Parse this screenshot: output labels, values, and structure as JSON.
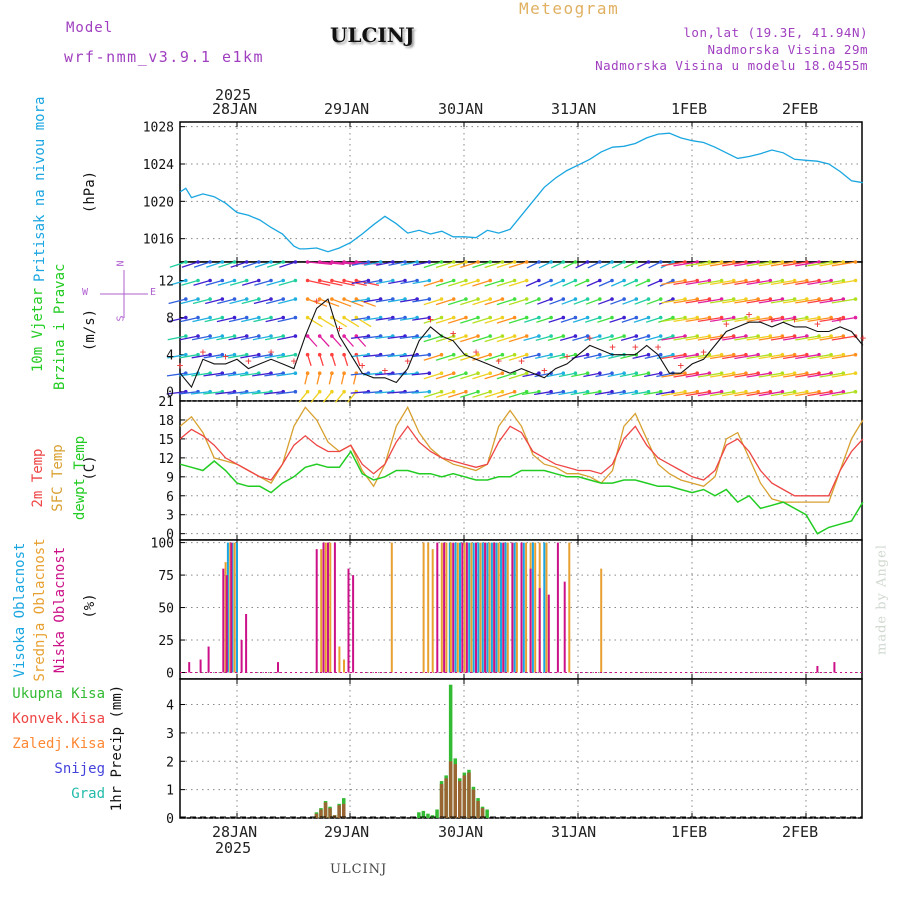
{
  "header": {
    "model_label": "Model",
    "model_name": "wrf-nmm_v3.9.1 e1km",
    "station": "ULCINJ",
    "meteogram": "Meteogram",
    "lonlat": "lon,lat (19.3E, 41.94N)",
    "elevation": "Nadmorska Visina 29m",
    "model_elevation": "Nadmorska Visina u modelu 18.0455m"
  },
  "footer": {
    "station": "ULCINJ",
    "credit": "made by Angel"
  },
  "colors": {
    "pressure": "#1aa6e0",
    "temp2m": "#ee4444",
    "sfc": "#d8a030",
    "dew": "#22cc22",
    "high_cloud": "#1aa6e0",
    "mid_cloud": "#e8a030",
    "low_cloud": "#cc1188",
    "total_precip": "#33bb33",
    "conv_precip": "#ee4444",
    "freezing": "#ff8833",
    "snow": "#4444dd",
    "hail": "#22bbaa",
    "purple_text": "#a040c0",
    "orange_text": "#e0a040"
  },
  "time_axis": {
    "year": "2025",
    "labels": [
      "28JAN",
      "29JAN",
      "30JAN",
      "31JAN",
      "1FEB",
      "2FEB"
    ]
  },
  "panels": {
    "pressure": {
      "label": "Pritisak na nivou mora",
      "unit": "(hPa)"
    },
    "wind": {
      "label1": "10m Vjetar",
      "label2": "Brzina i Pravac",
      "unit": "(m/s)",
      "compass_w": "W",
      "compass_e": "E",
      "compass_n": "N",
      "compass_s": "S"
    },
    "temp": {
      "label1": "2m Temp",
      "label2": "SFC Temp",
      "label3": "dewpt Temp",
      "unit": "(C)"
    },
    "cloud": {
      "label1": "Visoka Oblacnost",
      "label2": "Srednja Oblacnost",
      "label3": "Niska Oblacnost",
      "unit": "(%)"
    },
    "precip": {
      "label": "1hr Precip (mm)",
      "legend": [
        "Ukupna Kisa",
        "Konvek.Kisa",
        "Zaledj.Kisa",
        "Snijeg",
        "Grad"
      ]
    }
  },
  "chart_data": [
    {
      "type": "line",
      "title": "Pritisak na nivou mora",
      "ylabel": "(hPa)",
      "ylim": [
        1013.5,
        1028.5
      ],
      "yticks": [
        1016,
        1020,
        1024,
        1028
      ],
      "x_unit": "days since 28JAN 00UTC",
      "xlim": [
        -0.5,
        5.5
      ],
      "grid": true,
      "series": [
        {
          "name": "Pritisak",
          "x": [
            -0.5,
            -0.45,
            -0.4,
            -0.3,
            -0.2,
            -0.1,
            0,
            0.1,
            0.2,
            0.3,
            0.4,
            0.5,
            0.55,
            0.6,
            0.7,
            0.8,
            0.9,
            1.0,
            1.1,
            1.2,
            1.3,
            1.4,
            1.5,
            1.6,
            1.7,
            1.8,
            1.9,
            2.0,
            2.1,
            2.2,
            2.3,
            2.4,
            2.5,
            2.6,
            2.7,
            2.8,
            2.9,
            3.0,
            3.1,
            3.2,
            3.3,
            3.4,
            3.5,
            3.6,
            3.7,
            3.8,
            3.9,
            4.0,
            4.1,
            4.2,
            4.3,
            4.4,
            4.5,
            4.6,
            4.7,
            4.8,
            4.9,
            5.0,
            5.1,
            5.2,
            5.3,
            5.4,
            5.5
          ],
          "values": [
            1021,
            1021.4,
            1020.4,
            1020.8,
            1020.5,
            1019.8,
            1018.8,
            1018.5,
            1018,
            1017.2,
            1016.5,
            1015.2,
            1014.9,
            1014.9,
            1015,
            1014.6,
            1015,
            1015.6,
            1016.5,
            1017.5,
            1018.4,
            1017.6,
            1016.6,
            1016.9,
            1016.5,
            1016.8,
            1016.2,
            1016.2,
            1016.1,
            1016.9,
            1016.6,
            1017,
            1018.5,
            1020,
            1021.5,
            1022.5,
            1023.3,
            1023.9,
            1024.5,
            1025.3,
            1025.8,
            1025.9,
            1026.2,
            1026.8,
            1027.2,
            1027.3,
            1026.8,
            1026.5,
            1026.3,
            1025.8,
            1025.2,
            1024.6,
            1024.8,
            1025.1,
            1025.5,
            1025.2,
            1024.5,
            1024.4,
            1024.3,
            1024.0,
            1023.2,
            1022.2,
            1022.0
          ]
        }
      ]
    },
    {
      "type": "line",
      "title": "10m Vjetar Brzina i Pravac",
      "ylabel": "(m/s)",
      "ylim": [
        -1,
        14
      ],
      "yticks": [
        0,
        4,
        8,
        12
      ],
      "x_unit": "days since 28JAN 00UTC",
      "xlim": [
        -0.5,
        5.5
      ],
      "series": [
        {
          "name": "Brzina",
          "x": [
            -0.5,
            -0.4,
            -0.3,
            -0.2,
            -0.1,
            0,
            0.1,
            0.2,
            0.3,
            0.4,
            0.5,
            0.6,
            0.7,
            0.8,
            0.9,
            1.0,
            1.1,
            1.2,
            1.3,
            1.4,
            1.5,
            1.6,
            1.7,
            1.8,
            1.9,
            2.0,
            2.1,
            2.2,
            2.3,
            2.4,
            2.5,
            2.6,
            2.7,
            2.8,
            2.9,
            3.0,
            3.1,
            3.2,
            3.3,
            3.4,
            3.5,
            3.6,
            3.7,
            3.8,
            3.9,
            4.0,
            4.1,
            4.2,
            4.3,
            4.4,
            4.5,
            4.6,
            4.7,
            4.8,
            4.9,
            5.0,
            5.1,
            5.2,
            5.3,
            5.4,
            5.5
          ],
          "values": [
            2,
            0.5,
            3.5,
            3,
            3,
            3.5,
            2.5,
            3,
            3.5,
            3,
            2.5,
            6,
            9,
            10,
            6,
            4,
            2,
            1.5,
            1.5,
            1,
            2.5,
            5.5,
            7,
            6,
            5.5,
            4,
            3.5,
            3,
            2.5,
            2,
            2.5,
            2,
            1.5,
            2.5,
            3,
            4,
            5,
            4.5,
            4,
            4,
            4,
            5,
            4,
            2,
            2,
            3,
            3.5,
            5,
            6.5,
            7,
            7.5,
            7.5,
            7,
            7.5,
            7,
            7,
            6.5,
            6.5,
            7,
            6.5,
            5
          ]
        }
      ]
    },
    {
      "type": "line",
      "title": "2m Temp / SFC Temp / dewpt Temp",
      "ylabel": "(C)",
      "ylim": [
        -1,
        21
      ],
      "yticks": [
        0,
        3,
        6,
        9,
        12,
        15,
        18,
        21
      ],
      "x_unit": "days since 28JAN 00UTC",
      "xlim": [
        -0.5,
        5.5
      ],
      "grid": true,
      "series": [
        {
          "name": "2m Temp",
          "x": [
            -0.5,
            -0.4,
            -0.3,
            -0.2,
            -0.1,
            0,
            0.1,
            0.2,
            0.3,
            0.4,
            0.5,
            0.6,
            0.7,
            0.8,
            0.9,
            1.0,
            1.1,
            1.2,
            1.3,
            1.4,
            1.5,
            1.6,
            1.7,
            1.8,
            1.9,
            2.0,
            2.1,
            2.2,
            2.3,
            2.4,
            2.5,
            2.6,
            2.7,
            2.8,
            2.9,
            3.0,
            3.1,
            3.2,
            3.3,
            3.4,
            3.5,
            3.6,
            3.7,
            3.8,
            3.9,
            4.0,
            4.1,
            4.2,
            4.3,
            4.4,
            4.5,
            4.6,
            4.7,
            4.8,
            4.9,
            5.0,
            5.1,
            5.2,
            5.3,
            5.4,
            5.5
          ],
          "values": [
            15,
            16.5,
            15.5,
            14,
            12,
            11,
            10,
            9,
            8.5,
            11,
            14,
            15.5,
            14,
            13,
            13,
            14,
            11,
            9.5,
            11,
            14.5,
            17,
            14.5,
            13,
            12,
            11.5,
            11,
            10.5,
            11,
            14.5,
            17,
            16,
            13,
            12,
            11,
            10.5,
            10,
            10,
            9.5,
            11,
            15,
            17,
            14,
            12,
            11,
            10,
            9,
            8.5,
            10,
            14,
            15,
            13,
            10,
            8,
            7,
            6,
            6,
            6,
            6,
            10,
            13,
            15
          ]
        },
        {
          "name": "SFC Temp",
          "x": [
            -0.5,
            -0.4,
            -0.3,
            -0.2,
            -0.1,
            0,
            0.1,
            0.2,
            0.3,
            0.4,
            0.5,
            0.6,
            0.7,
            0.8,
            0.9,
            1.0,
            1.1,
            1.2,
            1.3,
            1.4,
            1.5,
            1.6,
            1.7,
            1.8,
            1.9,
            2.0,
            2.1,
            2.2,
            2.3,
            2.4,
            2.5,
            2.6,
            2.7,
            2.8,
            2.9,
            3.0,
            3.1,
            3.2,
            3.3,
            3.4,
            3.5,
            3.6,
            3.7,
            3.8,
            3.9,
            4.0,
            4.1,
            4.2,
            4.3,
            4.4,
            4.5,
            4.6,
            4.7,
            4.8,
            4.9,
            5.0,
            5.1,
            5.2,
            5.3,
            5.4,
            5.5
          ],
          "values": [
            17,
            18.5,
            16,
            12,
            11.5,
            11,
            10,
            9,
            8,
            11,
            17,
            20,
            18,
            14.5,
            13,
            14,
            10,
            7.5,
            11,
            17,
            20,
            16,
            13.5,
            12,
            11,
            10.5,
            10,
            11,
            17,
            19.5,
            17,
            12.5,
            11,
            10.5,
            9.5,
            9.5,
            9,
            8,
            10,
            17,
            19,
            15,
            11,
            9.5,
            8.5,
            8,
            7.5,
            9,
            15,
            16,
            12,
            8,
            5.5,
            5,
            5,
            5,
            5,
            5,
            10,
            15,
            18
          ]
        },
        {
          "name": "dewpt Temp",
          "x": [
            -0.5,
            -0.4,
            -0.3,
            -0.2,
            -0.1,
            0,
            0.1,
            0.2,
            0.3,
            0.4,
            0.5,
            0.6,
            0.7,
            0.8,
            0.9,
            1.0,
            1.1,
            1.2,
            1.3,
            1.4,
            1.5,
            1.6,
            1.7,
            1.8,
            1.9,
            2.0,
            2.1,
            2.2,
            2.3,
            2.4,
            2.5,
            2.6,
            2.7,
            2.8,
            2.9,
            3.0,
            3.1,
            3.2,
            3.3,
            3.4,
            3.5,
            3.6,
            3.7,
            3.8,
            3.9,
            4.0,
            4.1,
            4.2,
            4.3,
            4.4,
            4.5,
            4.6,
            4.7,
            4.8,
            4.9,
            5.0,
            5.1,
            5.2,
            5.3,
            5.4,
            5.5
          ],
          "values": [
            11,
            10.5,
            10,
            11.5,
            10,
            8,
            7.5,
            7.5,
            6.5,
            8,
            9,
            10.5,
            11,
            10.5,
            10.5,
            13,
            9.5,
            8.5,
            9,
            10,
            10,
            9.5,
            9.5,
            9,
            9.5,
            9,
            8.5,
            8.5,
            9,
            9,
            10,
            10,
            10,
            9.5,
            9,
            9,
            8.5,
            8,
            8,
            8.5,
            8.5,
            8,
            7.5,
            7.5,
            7,
            6.5,
            7,
            6,
            7,
            5,
            6,
            4,
            4.5,
            5,
            4,
            3,
            0,
            1,
            1.5,
            2,
            5
          ]
        }
      ]
    },
    {
      "type": "bar",
      "title": "Visoka / Srednja / Niska Oblacnost",
      "ylabel": "(%)",
      "ylim": [
        -5,
        102
      ],
      "yticks": [
        0,
        25,
        50,
        75,
        100
      ],
      "x_unit": "days since 28JAN 00UTC",
      "xlim": [
        -0.5,
        5.5
      ],
      "grid": true,
      "series": [
        {
          "name": "Visoka Oblacnost",
          "x": [
            -0.08,
            -0.04,
            0.0,
            1.87,
            1.92,
            1.96,
            2.04,
            2.08,
            2.12,
            2.16,
            2.2,
            2.24,
            2.28,
            2.32,
            2.36,
            2.44,
            2.52,
            2.6,
            2.7
          ],
          "values": [
            100,
            100,
            100,
            100,
            100,
            100,
            100,
            100,
            100,
            100,
            100,
            100,
            100,
            100,
            100,
            100,
            100,
            100,
            100
          ]
        },
        {
          "name": "Srednja Oblacnost",
          "x": [
            -0.1,
            -0.06,
            -0.02,
            0.74,
            0.78,
            0.82,
            0.9,
            0.94,
            1.36,
            1.64,
            1.68,
            1.72,
            1.8,
            1.84,
            1.88,
            1.94,
            2.0,
            2.06,
            2.1,
            2.14,
            2.18,
            2.22,
            2.26,
            2.3,
            2.34,
            2.38,
            2.42,
            2.46,
            2.5,
            2.54,
            2.58,
            2.62,
            2.66,
            2.72,
            2.92,
            3.2
          ],
          "values": [
            85,
            100,
            100,
            95,
            100,
            100,
            20,
            10,
            100,
            100,
            100,
            95,
            100,
            100,
            100,
            100,
            100,
            100,
            100,
            100,
            100,
            100,
            100,
            100,
            100,
            100,
            100,
            100,
            50,
            100,
            100,
            100,
            100,
            100,
            100,
            80
          ]
        },
        {
          "name": "Niska Oblacnost",
          "x": [
            -0.42,
            -0.32,
            -0.25,
            -0.12,
            -0.09,
            -0.05,
            0.04,
            0.08,
            0.36,
            0.7,
            0.76,
            0.8,
            0.86,
            0.98,
            1.02,
            1.76,
            1.82,
            1.9,
            1.98,
            2.02,
            2.1,
            2.18,
            2.26,
            2.34,
            2.42,
            2.5,
            2.58,
            2.66,
            2.74,
            2.82,
            2.88,
            5.1,
            5.25
          ],
          "values": [
            8,
            10,
            20,
            80,
            75,
            100,
            25,
            45,
            8,
            95,
            100,
            100,
            100,
            80,
            75,
            100,
            100,
            100,
            100,
            100,
            100,
            100,
            100,
            100,
            100,
            100,
            80,
            65,
            60,
            100,
            70,
            5,
            8
          ]
        }
      ]
    },
    {
      "type": "bar",
      "title": "1hr Precip (mm)",
      "ylabel": "1hr Precip (mm)",
      "ylim": [
        0,
        4.9
      ],
      "yticks": [
        0,
        1,
        2,
        3,
        4
      ],
      "x_unit": "days since 28JAN 00UTC",
      "xlim": [
        -0.5,
        5.5
      ],
      "grid": true,
      "series": [
        {
          "name": "Ukupna Kisa",
          "x": [
            0.7,
            0.74,
            0.78,
            0.82,
            0.86,
            0.9,
            0.94,
            1.6,
            1.64,
            1.68,
            1.72,
            1.76,
            1.8,
            1.84,
            1.88,
            1.92,
            1.96,
            2.0,
            2.04,
            2.08,
            2.12,
            2.16,
            2.2
          ],
          "values": [
            0.2,
            0.35,
            0.6,
            0.4,
            0.1,
            0.5,
            0.7,
            0.2,
            0.25,
            0.15,
            0.1,
            0.3,
            1.3,
            1.5,
            4.7,
            2.1,
            1.4,
            1.6,
            1.7,
            1.1,
            0.7,
            0.4,
            0.3
          ]
        },
        {
          "name": "Konvek.Kisa",
          "x": [
            0.7,
            0.74,
            0.78,
            0.82,
            0.86,
            0.9,
            0.94,
            1.8,
            1.84,
            1.88,
            1.92,
            1.96,
            2.0,
            2.04,
            2.08,
            2.12,
            2.16
          ],
          "values": [
            0.15,
            0.3,
            0.55,
            0.35,
            0.1,
            0.45,
            0.5,
            1.2,
            1.4,
            2.0,
            1.9,
            1.3,
            1.5,
            1.6,
            1.0,
            0.6,
            0.35
          ]
        }
      ]
    }
  ]
}
